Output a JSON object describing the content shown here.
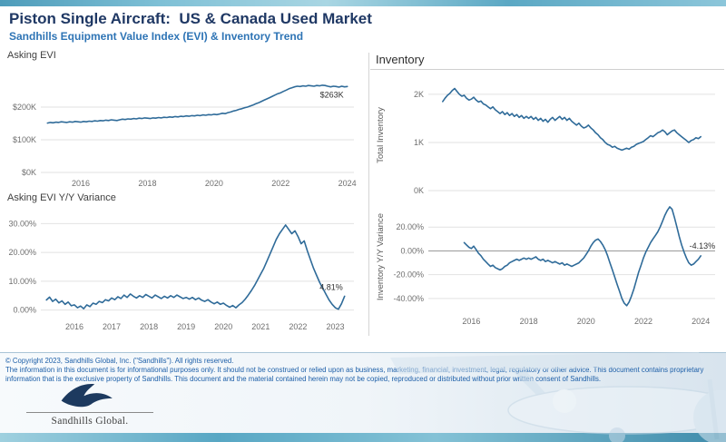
{
  "page": {
    "title": "Piston Single Aircraft:  US & Canada Used Market",
    "subtitle": "Sandhills Equipment Value Index (EVI) & Inventory Trend"
  },
  "right_panel": {
    "title": "Inventory"
  },
  "colors": {
    "line": "#2f6b99",
    "title": "#1f3864",
    "subtitle": "#2e74b5",
    "accent_teal": "#5ba8c4",
    "footer_text": "#1d5fa8"
  },
  "footer": {
    "copyright": "© Copyright 2023, Sandhills Global, Inc. (\"Sandhills\"). All rights reserved.",
    "disclaimer": "The information in this document is for informational purposes only.  It should not be construed or relied upon as business, marketing, financial, investment, legal, regulatory or other advice. This document contains proprietary information that is the exclusive property of Sandhills. This document and the material contained herein may not be copied, reproduced or distributed without prior written consent of Sandhills.",
    "logo_text": "Sandhills Global."
  },
  "chart_data": [
    {
      "type": "line",
      "title": "Asking EVI",
      "y_axis_title": "",
      "x_start": 2015.0,
      "x_step": 0.0833333,
      "values": [
        151,
        153,
        152,
        154,
        153,
        155,
        154,
        153,
        155,
        154,
        156,
        155,
        154,
        156,
        155,
        157,
        156,
        158,
        157,
        159,
        158,
        160,
        159,
        161,
        160,
        159,
        161,
        163,
        162,
        164,
        163,
        165,
        164,
        166,
        165,
        167,
        166,
        165,
        167,
        166,
        168,
        167,
        169,
        168,
        170,
        169,
        171,
        170,
        172,
        171,
        173,
        172,
        174,
        173,
        175,
        174,
        176,
        175,
        177,
        176,
        178,
        177,
        179,
        181,
        180,
        183,
        185,
        188,
        190,
        193,
        195,
        198,
        200,
        203,
        206,
        210,
        213,
        217,
        221,
        225,
        229,
        233,
        237,
        241,
        244,
        248,
        252,
        256,
        259,
        262,
        264,
        263,
        265,
        264,
        266,
        265,
        264,
        266,
        265,
        267,
        266,
        264,
        262,
        264,
        263,
        261,
        264,
        262,
        263
      ],
      "xlim": [
        2014.8,
        2024.2
      ],
      "ylim": [
        0,
        300
      ],
      "y_ticks": [
        0,
        100,
        200
      ],
      "y_tick_labels": [
        "$0K",
        "$100K",
        "$200K"
      ],
      "x_ticks": [
        2016,
        2018,
        2020,
        2022,
        2024
      ],
      "x_tick_labels": [
        "2016",
        "2018",
        "2020",
        "2022",
        "2024"
      ],
      "zero_line": false,
      "end_label": "$263K"
    },
    {
      "type": "line",
      "title": "Asking EVI Y/Y Variance",
      "y_axis_title": "",
      "x_start": 2015.25,
      "x_step": 0.0833333,
      "values": [
        3.5,
        4.5,
        3.0,
        3.8,
        2.5,
        3.2,
        2.0,
        2.8,
        1.5,
        1.8,
        0.8,
        1.4,
        0.5,
        1.8,
        1.2,
        2.4,
        2.0,
        3.0,
        2.6,
        3.6,
        3.2,
        4.2,
        3.6,
        4.6,
        4.0,
        5.2,
        4.4,
        5.6,
        4.8,
        4.2,
        5.0,
        4.4,
        5.4,
        4.8,
        4.2,
        5.2,
        4.6,
        4.0,
        4.8,
        4.2,
        5.0,
        4.4,
        5.2,
        4.6,
        4.0,
        4.4,
        3.8,
        4.4,
        3.6,
        4.2,
        3.4,
        3.0,
        3.6,
        2.8,
        2.2,
        2.8,
        2.0,
        2.4,
        1.6,
        1.0,
        1.6,
        0.8,
        1.8,
        2.6,
        3.8,
        5.2,
        6.8,
        8.5,
        10.5,
        12.5,
        14.5,
        17.0,
        19.5,
        22.0,
        24.5,
        26.5,
        28.0,
        29.5,
        28.0,
        26.5,
        27.5,
        25.5,
        23.0,
        24.0,
        20.5,
        17.5,
        14.5,
        12.0,
        9.5,
        7.5,
        5.5,
        3.5,
        2.0,
        0.8,
        0.3,
        2.2,
        4.81
      ],
      "xlim": [
        2015.1,
        2023.5
      ],
      "ylim": [
        -2,
        32
      ],
      "y_ticks": [
        0,
        10,
        20,
        30
      ],
      "y_tick_labels": [
        "0.00%",
        "10.00%",
        "20.00%",
        "30.00%"
      ],
      "x_ticks": [
        2016,
        2017,
        2018,
        2019,
        2020,
        2021,
        2022,
        2023
      ],
      "x_tick_labels": [
        "2016",
        "2017",
        "2018",
        "2019",
        "2020",
        "2021",
        "2022",
        "2023"
      ],
      "zero_line": false,
      "end_label": "4.81%"
    },
    {
      "type": "line",
      "title": "",
      "y_axis_title": "Total Inventory",
      "x_start": 2015.0,
      "x_step": 0.0833333,
      "values": [
        1.85,
        1.92,
        1.98,
        2.02,
        2.08,
        2.12,
        2.06,
        2.0,
        1.96,
        1.98,
        1.92,
        1.88,
        1.9,
        1.94,
        1.88,
        1.84,
        1.86,
        1.8,
        1.78,
        1.74,
        1.7,
        1.74,
        1.68,
        1.64,
        1.6,
        1.64,
        1.58,
        1.62,
        1.56,
        1.6,
        1.54,
        1.58,
        1.52,
        1.56,
        1.5,
        1.54,
        1.5,
        1.54,
        1.48,
        1.52,
        1.46,
        1.5,
        1.44,
        1.48,
        1.42,
        1.48,
        1.52,
        1.46,
        1.5,
        1.54,
        1.48,
        1.52,
        1.46,
        1.5,
        1.44,
        1.4,
        1.36,
        1.4,
        1.34,
        1.3,
        1.32,
        1.36,
        1.3,
        1.26,
        1.2,
        1.16,
        1.1,
        1.06,
        1.0,
        0.96,
        0.94,
        0.9,
        0.92,
        0.88,
        0.86,
        0.84,
        0.86,
        0.88,
        0.86,
        0.9,
        0.92,
        0.96,
        0.98,
        1.0,
        1.02,
        1.06,
        1.1,
        1.14,
        1.12,
        1.16,
        1.2,
        1.22,
        1.26,
        1.22,
        1.16,
        1.2,
        1.24,
        1.26,
        1.2,
        1.16,
        1.12,
        1.08,
        1.04,
        1.0,
        1.04,
        1.06,
        1.1,
        1.08,
        1.12
      ],
      "xlim": [
        2014.5,
        2024.5
      ],
      "ylim": [
        0,
        2.3
      ],
      "y_ticks": [
        0,
        1,
        2
      ],
      "y_tick_labels": [
        "0K",
        "1K",
        "2K"
      ],
      "x_ticks": [],
      "x_tick_labels": [],
      "zero_line": false,
      "end_label": ""
    },
    {
      "type": "line",
      "title": "",
      "y_axis_title": "Inventory Y/Y Variance",
      "x_start": 2015.75,
      "x_step": 0.0833333,
      "values": [
        7,
        5,
        3,
        2,
        4,
        1,
        -2,
        -4,
        -7,
        -9,
        -11,
        -13,
        -12,
        -14,
        -15,
        -16,
        -15,
        -13,
        -12,
        -10,
        -9,
        -8,
        -7,
        -8,
        -7,
        -6,
        -7,
        -6,
        -7,
        -6,
        -5,
        -7,
        -8,
        -7,
        -9,
        -8,
        -9,
        -10,
        -9,
        -10,
        -11,
        -10,
        -12,
        -11,
        -12,
        -13,
        -12,
        -11,
        -10,
        -8,
        -6,
        -3,
        0,
        4,
        7,
        9,
        10,
        8,
        5,
        1,
        -4,
        -10,
        -16,
        -22,
        -28,
        -34,
        -40,
        -44,
        -46,
        -43,
        -38,
        -32,
        -25,
        -18,
        -12,
        -6,
        -1,
        3,
        7,
        10,
        13,
        16,
        20,
        25,
        30,
        34,
        37,
        35,
        28,
        20,
        12,
        5,
        -1,
        -6,
        -10,
        -12,
        -11,
        -9,
        -7,
        -4.13
      ],
      "xlim": [
        2014.5,
        2024.5
      ],
      "ylim": [
        -50,
        40
      ],
      "y_ticks": [
        -40,
        -20,
        0,
        20
      ],
      "y_tick_labels": [
        "-40.00%",
        "-20.00%",
        "0.00%",
        "20.00%"
      ],
      "x_ticks": [
        2016,
        2018,
        2020,
        2022,
        2024
      ],
      "x_tick_labels": [
        "2016",
        "2018",
        "2020",
        "2022",
        "2024"
      ],
      "zero_line": true,
      "end_label": "-4.13%"
    }
  ]
}
